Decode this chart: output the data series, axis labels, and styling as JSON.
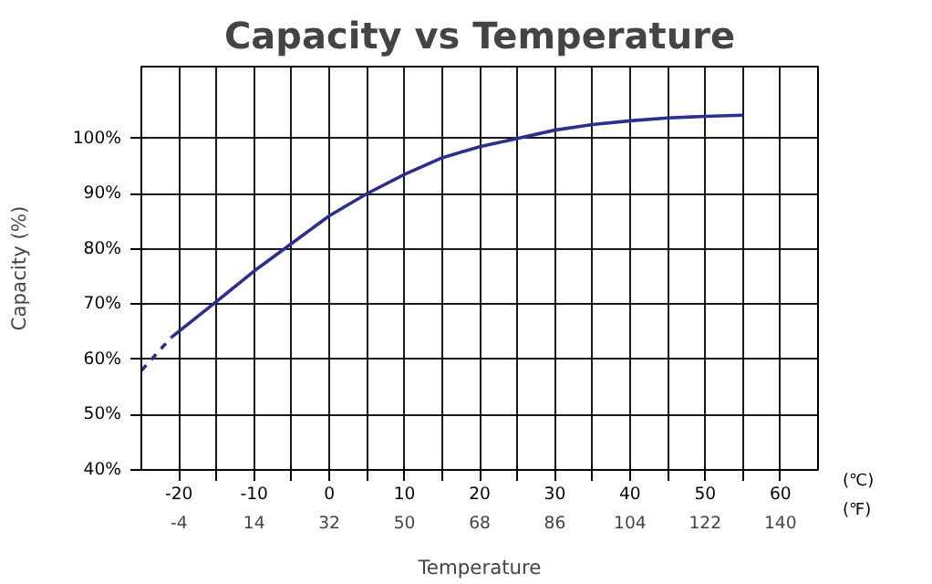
{
  "chart_data": {
    "type": "line",
    "title": "Capacity vs Temperature",
    "xlabel": "Temperature",
    "ylabel": "Capacity (%)",
    "series": [
      {
        "color": "#2b2f8f",
        "line_style": "solid",
        "x": [
          -21,
          -15,
          -10,
          -5,
          0,
          5,
          10,
          15,
          20,
          25,
          30,
          35,
          40,
          45,
          50,
          55
        ],
        "values": [
          64,
          70.5,
          76,
          81,
          86,
          90,
          93.5,
          96.5,
          98.5,
          100,
          101.5,
          102.5,
          103.2,
          103.7,
          104,
          104.2
        ]
      },
      {
        "color": "#2b2f8f",
        "line_style": "dashed",
        "x": [
          -25,
          -23,
          -21
        ],
        "values": [
          58,
          61,
          64
        ]
      }
    ],
    "xlim": [
      -25,
      65
    ],
    "ylim": [
      40,
      113
    ],
    "xticks": [
      -20,
      {
        "value": -15,
        "label": null
      },
      -10,
      {
        "value": -5,
        "label": null
      },
      0,
      {
        "value": 5,
        "label": null
      },
      10,
      {
        "value": 15,
        "label": null
      },
      20,
      {
        "value": 25,
        "label": null
      },
      30,
      {
        "value": 35,
        "label": null
      },
      40,
      {
        "value": 45,
        "label": null
      },
      50,
      {
        "value": 55,
        "label": null
      },
      60
    ],
    "x2lim": [
      -13,
      149
    ],
    "x2ticks": [
      -4,
      14,
      32,
      50,
      68,
      86,
      104,
      122,
      140
    ],
    "yticks": [
      {
        "value": 40,
        "label": "40%"
      },
      {
        "value": 50,
        "label": "50%"
      },
      {
        "value": 60,
        "label": "60%"
      },
      {
        "value": 70,
        "label": "70%"
      },
      {
        "value": 80,
        "label": "80%"
      },
      {
        "value": 90,
        "label": "90%"
      },
      {
        "value": 100,
        "label": "100%"
      }
    ],
    "annotations": [
      "(℃)",
      "(℉)"
    ],
    "grid": true,
    "marker": "none"
  }
}
